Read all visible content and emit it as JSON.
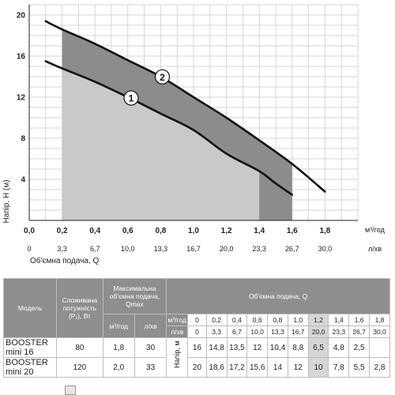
{
  "chart_data": {
    "type": "line",
    "ylabel": "Напір, Н (м)",
    "xlabel": "Об'ємна подача, Q",
    "x_unit_primary": "м³/год",
    "x_unit_secondary": "л/хв",
    "xlim": [
      0,
      2.0
    ],
    "ylim": [
      0,
      21
    ],
    "yticks": [
      "4",
      "8",
      "12",
      "16",
      "20"
    ],
    "yticks_values": [
      4,
      8,
      12,
      16,
      20
    ],
    "xticks": [
      "0,0",
      "0,2",
      "0,4",
      "0,6",
      "0,8",
      "1,0",
      "1,2",
      "1,4",
      "1,6",
      "1,8"
    ],
    "xticks_values": [
      0,
      0.2,
      0.4,
      0.6,
      0.8,
      1.0,
      1.2,
      1.4,
      1.6,
      1.8
    ],
    "xticks_secondary": [
      "0",
      "3,3",
      "6,7",
      "10,0",
      "13,3",
      "16,7",
      "20,0",
      "23,3",
      "26,7",
      "30,0"
    ],
    "grid": true,
    "series": [
      {
        "name": "1",
        "x": [
          0.1,
          0.2,
          0.4,
          0.6,
          0.8,
          1.0,
          1.2,
          1.4,
          1.5,
          1.6
        ],
        "y": [
          15.5,
          14.8,
          13.5,
          12,
          10.4,
          8.8,
          6.5,
          4.8,
          3.6,
          2.5
        ]
      },
      {
        "name": "2",
        "x": [
          0.1,
          0.2,
          0.4,
          0.6,
          0.8,
          1.0,
          1.2,
          1.4,
          1.6,
          1.8
        ],
        "y": [
          19.4,
          18.6,
          17.2,
          15.6,
          14,
          12,
          10,
          7.8,
          5.5,
          2.8
        ]
      }
    ],
    "shaded_ranges": [
      [
        0.2,
        1.6
      ]
    ],
    "colors": {
      "curve": "#111111",
      "region_dark": "#8c8c8c",
      "region_light": "#c9c9c9",
      "grid": "#c8c8c8"
    }
  },
  "table": {
    "headers": {
      "model": "Модель",
      "power": "Споживана потужність (P₁), Вт",
      "max_flow": "Максимальна об'ємна подача, Qmax",
      "flow_m3": "м³/год",
      "flow_lmin": "л/хв",
      "flow_group": "Об'ємна подача, Q",
      "unit_m3": "м³/год",
      "unit_lmin": "л/хв",
      "head": "Напір, м"
    },
    "q_m3": [
      "0",
      "0,2",
      "0,4",
      "0,6",
      "0,8",
      "1,0",
      "1,2",
      "1,4",
      "1,6",
      "1,8"
    ],
    "q_lmin": [
      "0",
      "3,3",
      "6,7",
      "10,0",
      "13,3",
      "16,7",
      "20,0",
      "23,3",
      "26,7",
      "30,0"
    ],
    "rows": [
      {
        "model": "BOOSTER mini 16",
        "power": "80",
        "qmax_m3": "1,8",
        "qmax_lmin": "30",
        "heads": [
          "16",
          "14,8",
          "13,5",
          "12",
          "10,4",
          "8,8",
          "6,5",
          "4,8",
          "2,5",
          ""
        ]
      },
      {
        "model": "BOOSTER mini 20",
        "power": "120",
        "qmax_m3": "2,0",
        "qmax_lmin": "33",
        "heads": [
          "20",
          "18,6",
          "17,2",
          "15,6",
          "14",
          "12",
          "10",
          "7,8",
          "5,5",
          "2,8"
        ]
      }
    ]
  }
}
